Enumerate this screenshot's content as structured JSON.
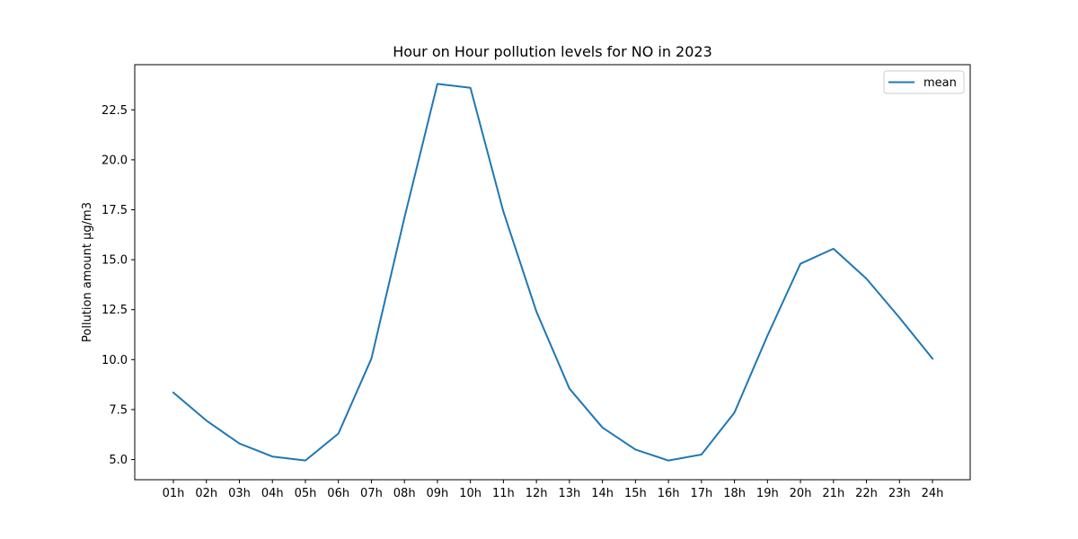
{
  "chart_data": {
    "type": "line",
    "title": "Hour on Hour pollution levels for NO in 2023",
    "xlabel": "",
    "ylabel": "Pollution amount µg/m3",
    "categories": [
      "01h",
      "02h",
      "03h",
      "04h",
      "05h",
      "06h",
      "07h",
      "08h",
      "09h",
      "10h",
      "11h",
      "12h",
      "13h",
      "14h",
      "15h",
      "16h",
      "17h",
      "18h",
      "19h",
      "20h",
      "21h",
      "22h",
      "23h",
      "24h"
    ],
    "series": [
      {
        "name": "mean",
        "color": "#1f77b4",
        "values": [
          8.35,
          6.95,
          5.8,
          5.15,
          4.95,
          6.3,
          10.05,
          17.1,
          23.8,
          23.6,
          17.4,
          12.4,
          8.55,
          6.6,
          5.5,
          4.95,
          5.25,
          7.35,
          11.2,
          14.8,
          15.55,
          14.05,
          12.1,
          10.05
        ]
      }
    ],
    "yticks": [
      5.0,
      7.5,
      10.0,
      12.5,
      15.0,
      17.5,
      20.0,
      22.5
    ],
    "ytick_labels": [
      "5.0",
      "7.5",
      "10.0",
      "12.5",
      "15.0",
      "17.5",
      "20.0",
      "22.5"
    ],
    "ylim": [
      3.99,
      24.76
    ],
    "grid": false,
    "legend": "top-right"
  }
}
